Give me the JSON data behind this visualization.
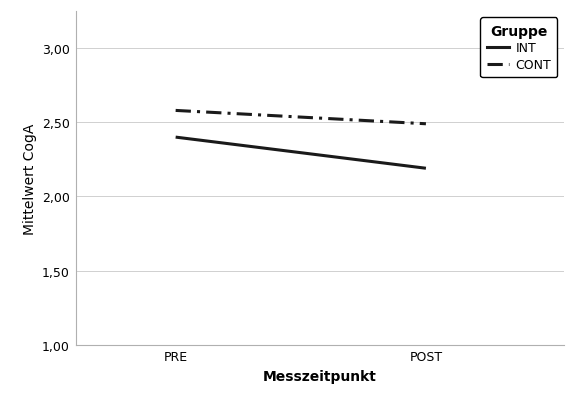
{
  "x_labels": [
    "PRE",
    "POST"
  ],
  "x_positions": [
    0,
    1
  ],
  "INT_values": [
    2.4,
    2.19
  ],
  "CONT_values": [
    2.58,
    2.49
  ],
  "ylabel": "Mittelwert CogA",
  "xlabel": "Messzeitpunkt",
  "legend_title": "Gruppe",
  "legend_INT": "INT",
  "legend_CONT": "CONT",
  "ylim": [
    1.0,
    3.25
  ],
  "yticks": [
    1.0,
    1.5,
    2.0,
    2.5,
    3.0
  ],
  "ytick_labels": [
    "1,00",
    "1,50",
    "2,00",
    "2,50",
    "3,00"
  ],
  "background_color": "#ffffff",
  "line_color": "#1a1a1a",
  "grid_color": "#d0d0d0",
  "INT_linewidth": 2.2,
  "CONT_linewidth": 2.2,
  "label_fontsize": 10,
  "tick_fontsize": 9,
  "legend_title_fontsize": 10,
  "legend_fontsize": 9
}
